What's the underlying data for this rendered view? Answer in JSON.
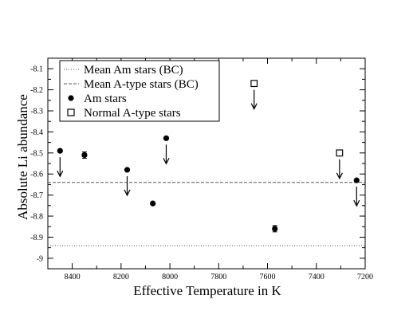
{
  "chart_data": {
    "type": "scatter",
    "title": "",
    "xlabel": "Effective Temperature in K",
    "ylabel": "Absolute Li abundance",
    "xlim": [
      8500,
      7200
    ],
    "ylim": [
      -9.05,
      -8.05
    ],
    "x_ticks": [
      8400,
      8200,
      8000,
      7800,
      7600,
      7400,
      7200
    ],
    "x_minor_step": 100,
    "y_ticks": [
      -9.0,
      -8.9,
      -8.8,
      -8.7,
      -8.6,
      -8.5,
      -8.4,
      -8.3,
      -8.2,
      -8.1
    ],
    "y_tick_labels": [
      "-9",
      "-8.9",
      "-8.8",
      "-8.7",
      "-8.6",
      "-8.5",
      "-8.4",
      "-8.3",
      "-8.2",
      "-8.1"
    ],
    "grid": false,
    "legend_position": "top-left",
    "reference_lines": [
      {
        "name": "Mean Am stars (BC)",
        "style": "dotted",
        "y": -8.94
      },
      {
        "name": "Mean A-type stars (BC)",
        "style": "dashed",
        "y": -8.64
      }
    ],
    "series": [
      {
        "name": "Am stars",
        "marker": "filled-circle",
        "points": [
          {
            "x": 8450,
            "y": -8.49,
            "upper_limit": true
          },
          {
            "x": 8350,
            "y": -8.51,
            "upper_limit": false,
            "error": 0.015
          },
          {
            "x": 8175,
            "y": -8.58,
            "upper_limit": true
          },
          {
            "x": 8070,
            "y": -8.74,
            "upper_limit": false
          },
          {
            "x": 8015,
            "y": -8.43,
            "upper_limit": true
          },
          {
            "x": 7570,
            "y": -8.86,
            "upper_limit": false,
            "error": 0.015
          },
          {
            "x": 7235,
            "y": -8.63,
            "upper_limit": true
          }
        ]
      },
      {
        "name": "Normal A-type stars",
        "marker": "open-square",
        "points": [
          {
            "x": 7655,
            "y": -8.17,
            "upper_limit": true
          },
          {
            "x": 7305,
            "y": -8.5,
            "upper_limit": true
          }
        ]
      }
    ]
  }
}
